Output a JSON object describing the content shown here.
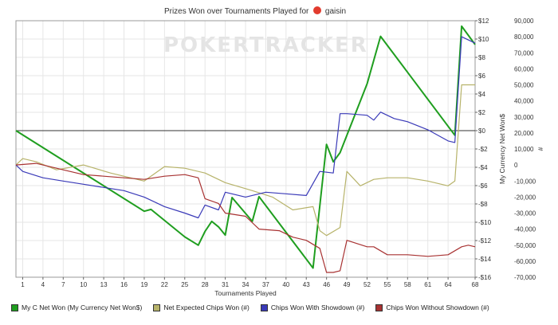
{
  "chart_data": {
    "type": "line",
    "title": "Prizes Won over Tournaments Played for",
    "player": "gaisin",
    "watermark": "POKERTRACKER",
    "xlabel": "Tournaments Played",
    "y_left_label": "My Currency Net Won$",
    "y_right_label": "#",
    "xlim": [
      0,
      68
    ],
    "x_ticks": [
      1,
      4,
      7,
      10,
      13,
      16,
      19,
      22,
      25,
      28,
      31,
      34,
      37,
      40,
      43,
      46,
      49,
      52,
      55,
      58,
      61,
      64,
      68
    ],
    "y_left_lim": [
      -16,
      12
    ],
    "y_left_ticks": [
      -16,
      -14,
      -12,
      -10,
      -8,
      -6,
      -4,
      -2,
      0,
      2,
      4,
      6,
      8,
      10,
      12
    ],
    "y_left_tick_labels": [
      "-$16",
      "-$14",
      "-$12",
      "-$10",
      "-$8",
      "-$6",
      "-$4",
      "-$2",
      "$0",
      "$2",
      "$4",
      "$6",
      "$8",
      "$10",
      "$12"
    ],
    "y_right_lim": [
      -70000,
      90000
    ],
    "y_right_ticks": [
      -70000,
      -60000,
      -50000,
      -40000,
      -30000,
      -20000,
      -10000,
      0,
      10000,
      20000,
      30000,
      40000,
      50000,
      60000,
      70000,
      80000,
      90000
    ],
    "y_right_tick_labels": [
      "-70,000",
      "-60,000",
      "-50,000",
      "-40,000",
      "-30,000",
      "-20,000",
      "-10,000",
      "0",
      "10,000",
      "20,000",
      "30,000",
      "40,000",
      "50,000",
      "60,000",
      "70,000",
      "80,000",
      "90,000"
    ],
    "grid": true,
    "legend_position": "bottom",
    "series": [
      {
        "name": "My C Net Won (My Currency Net Won$)",
        "axis": "left",
        "color": "#1f9e1f",
        "x": [
          0,
          19,
          20,
          25,
          27,
          28,
          29,
          30,
          31,
          32,
          35,
          36,
          44,
          46,
          47,
          48,
          52,
          54,
          65,
          66,
          68
        ],
        "y": [
          0,
          -8.8,
          -8.6,
          -11.6,
          -12.5,
          -11.0,
          -9.9,
          -10.5,
          -11.4,
          -7.3,
          -9.9,
          -7.2,
          -15.0,
          -1.5,
          -3.4,
          -2.4,
          5.1,
          10.3,
          -0.5,
          11.4,
          9.4
        ]
      },
      {
        "name": "Net Expected Chips Won (#)",
        "axis": "right",
        "color": "#b7b36a",
        "x": [
          0,
          1,
          3,
          6,
          10,
          14,
          19,
          22,
          25,
          28,
          31,
          35,
          38,
          41,
          44,
          45,
          46,
          48,
          49,
          51,
          53,
          55,
          58,
          61,
          64,
          65,
          66,
          68
        ],
        "y": [
          0,
          4000,
          2000,
          -3000,
          0,
          -5000,
          -10000,
          -1000,
          -2000,
          -5000,
          -11000,
          -16000,
          -20000,
          -28000,
          -26000,
          -41000,
          -44000,
          -39000,
          -4000,
          -13000,
          -9000,
          -8000,
          -8000,
          -10000,
          -13000,
          -10000,
          50000,
          50000
        ]
      },
      {
        "name": "Chips Won With Showdown (#)",
        "axis": "right",
        "color": "#3a3ab8",
        "x": [
          0,
          1,
          4,
          7,
          10,
          13,
          16,
          19,
          22,
          25,
          27,
          28,
          30,
          31,
          34,
          37,
          40,
          43,
          45,
          47,
          48,
          49,
          52,
          53,
          54,
          56,
          58,
          61,
          64,
          65,
          66,
          68
        ],
        "y": [
          0,
          -4000,
          -8000,
          -10000,
          -12000,
          -14000,
          -16000,
          -20000,
          -26000,
          -30000,
          -33000,
          -25000,
          -28000,
          -17000,
          -20000,
          -17000,
          -18000,
          -19000,
          -4000,
          -5000,
          32000,
          32000,
          31000,
          28000,
          33000,
          29000,
          27000,
          22000,
          15000,
          14000,
          80000,
          76000
        ]
      },
      {
        "name": "Chips Won Without Showdown (#)",
        "axis": "right",
        "color": "#a83232",
        "x": [
          0,
          3,
          7,
          10,
          13,
          16,
          19,
          22,
          25,
          27,
          28,
          30,
          31,
          34,
          36,
          39,
          41,
          43,
          45,
          46,
          47,
          48,
          49,
          52,
          53,
          55,
          58,
          61,
          64,
          66,
          67,
          68
        ],
        "y": [
          0,
          1000,
          -3000,
          -6000,
          -7000,
          -8000,
          -9000,
          -7000,
          -6000,
          -8000,
          -21000,
          -24000,
          -30000,
          -32000,
          -40000,
          -41000,
          -45000,
          -47000,
          -52000,
          -67000,
          -67000,
          -66000,
          -47000,
          -51000,
          -51000,
          -56000,
          -56000,
          -57000,
          -56000,
          -51000,
          -50000,
          -51000
        ]
      }
    ]
  }
}
